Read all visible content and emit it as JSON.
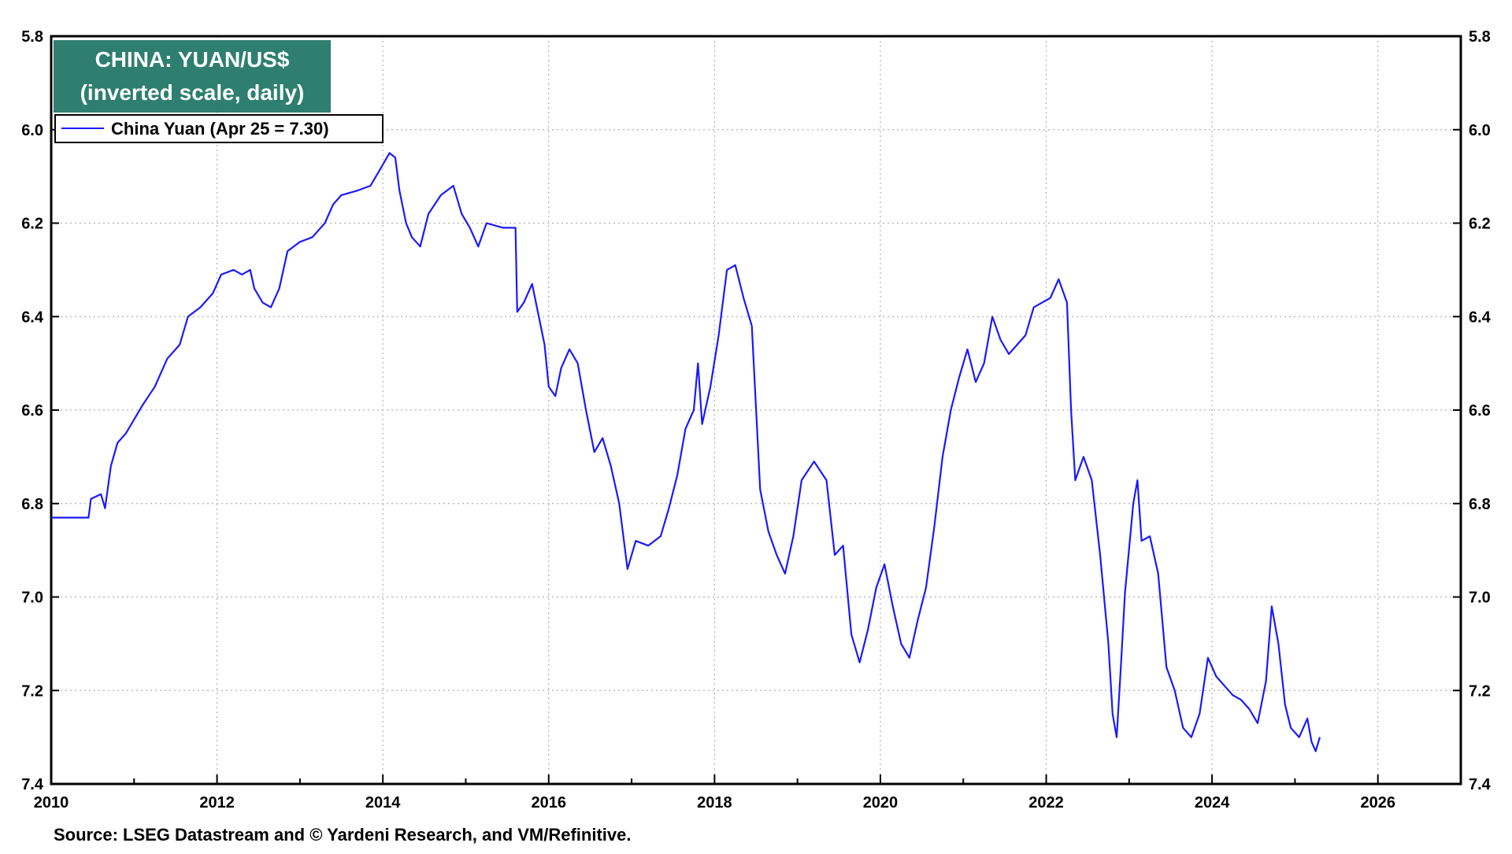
{
  "chart_data": {
    "type": "line",
    "title_line1": "CHINA: YUAN/US$",
    "title_line2": "(inverted scale, daily)",
    "source": "Source: LSEG Datastream and © Yardeni Research, and VM/Refinitive.",
    "y_inverted": true,
    "ylim": [
      5.8,
      7.4
    ],
    "xlim": [
      2010.0,
      2027.0
    ],
    "y_ticks": [
      "5.8",
      "6.0",
      "6.2",
      "6.4",
      "6.6",
      "6.8",
      "7.0",
      "7.2",
      "7.4"
    ],
    "x_ticks": [
      "2010",
      "2012",
      "2014",
      "2016",
      "2018",
      "2020",
      "2022",
      "2024",
      "2026"
    ],
    "grid": true,
    "legend_position": "top-left",
    "colors": {
      "line": "#1a1aff",
      "title_bg": "#2e7f6f",
      "grid": "#b0b0b0"
    },
    "series": [
      {
        "name": "China Yuan (Apr 25 = 7.30)",
        "points": [
          [
            2010.0,
            6.83
          ],
          [
            2010.2,
            6.83
          ],
          [
            2010.45,
            6.83
          ],
          [
            2010.48,
            6.79
          ],
          [
            2010.6,
            6.78
          ],
          [
            2010.65,
            6.81
          ],
          [
            2010.72,
            6.72
          ],
          [
            2010.8,
            6.67
          ],
          [
            2010.9,
            6.65
          ],
          [
            2011.0,
            6.62
          ],
          [
            2011.1,
            6.59
          ],
          [
            2011.25,
            6.55
          ],
          [
            2011.4,
            6.49
          ],
          [
            2011.55,
            6.46
          ],
          [
            2011.65,
            6.4
          ],
          [
            2011.8,
            6.38
          ],
          [
            2011.95,
            6.35
          ],
          [
            2012.05,
            6.31
          ],
          [
            2012.2,
            6.3
          ],
          [
            2012.3,
            6.31
          ],
          [
            2012.4,
            6.3
          ],
          [
            2012.45,
            6.34
          ],
          [
            2012.55,
            6.37
          ],
          [
            2012.65,
            6.38
          ],
          [
            2012.75,
            6.34
          ],
          [
            2012.85,
            6.26
          ],
          [
            2013.0,
            6.24
          ],
          [
            2013.15,
            6.23
          ],
          [
            2013.3,
            6.2
          ],
          [
            2013.4,
            6.16
          ],
          [
            2013.5,
            6.14
          ],
          [
            2013.7,
            6.13
          ],
          [
            2013.85,
            6.12
          ],
          [
            2013.95,
            6.09
          ],
          [
            2014.08,
            6.05
          ],
          [
            2014.15,
            6.06
          ],
          [
            2014.2,
            6.13
          ],
          [
            2014.28,
            6.2
          ],
          [
            2014.35,
            6.23
          ],
          [
            2014.45,
            6.25
          ],
          [
            2014.55,
            6.18
          ],
          [
            2014.7,
            6.14
          ],
          [
            2014.85,
            6.12
          ],
          [
            2014.95,
            6.18
          ],
          [
            2015.05,
            6.21
          ],
          [
            2015.15,
            6.25
          ],
          [
            2015.25,
            6.2
          ],
          [
            2015.45,
            6.21
          ],
          [
            2015.6,
            6.21
          ],
          [
            2015.62,
            6.39
          ],
          [
            2015.7,
            6.37
          ],
          [
            2015.8,
            6.33
          ],
          [
            2015.95,
            6.46
          ],
          [
            2016.0,
            6.55
          ],
          [
            2016.08,
            6.57
          ],
          [
            2016.15,
            6.51
          ],
          [
            2016.25,
            6.47
          ],
          [
            2016.35,
            6.5
          ],
          [
            2016.45,
            6.6
          ],
          [
            2016.55,
            6.69
          ],
          [
            2016.65,
            6.66
          ],
          [
            2016.75,
            6.72
          ],
          [
            2016.85,
            6.8
          ],
          [
            2016.95,
            6.94
          ],
          [
            2017.05,
            6.88
          ],
          [
            2017.2,
            6.89
          ],
          [
            2017.35,
            6.87
          ],
          [
            2017.45,
            6.81
          ],
          [
            2017.55,
            6.74
          ],
          [
            2017.65,
            6.64
          ],
          [
            2017.75,
            6.6
          ],
          [
            2017.8,
            6.5
          ],
          [
            2017.85,
            6.63
          ],
          [
            2017.95,
            6.55
          ],
          [
            2018.05,
            6.44
          ],
          [
            2018.15,
            6.3
          ],
          [
            2018.25,
            6.29
          ],
          [
            2018.35,
            6.36
          ],
          [
            2018.45,
            6.42
          ],
          [
            2018.55,
            6.77
          ],
          [
            2018.65,
            6.86
          ],
          [
            2018.75,
            6.91
          ],
          [
            2018.85,
            6.95
          ],
          [
            2018.95,
            6.87
          ],
          [
            2019.05,
            6.75
          ],
          [
            2019.2,
            6.71
          ],
          [
            2019.35,
            6.75
          ],
          [
            2019.45,
            6.91
          ],
          [
            2019.55,
            6.89
          ],
          [
            2019.65,
            7.08
          ],
          [
            2019.75,
            7.14
          ],
          [
            2019.85,
            7.07
          ],
          [
            2019.95,
            6.98
          ],
          [
            2020.05,
            6.93
          ],
          [
            2020.15,
            7.02
          ],
          [
            2020.25,
            7.1
          ],
          [
            2020.35,
            7.13
          ],
          [
            2020.45,
            7.05
          ],
          [
            2020.55,
            6.98
          ],
          [
            2020.65,
            6.85
          ],
          [
            2020.75,
            6.7
          ],
          [
            2020.85,
            6.6
          ],
          [
            2020.95,
            6.53
          ],
          [
            2021.05,
            6.47
          ],
          [
            2021.15,
            6.54
          ],
          [
            2021.25,
            6.5
          ],
          [
            2021.35,
            6.4
          ],
          [
            2021.45,
            6.45
          ],
          [
            2021.55,
            6.48
          ],
          [
            2021.65,
            6.46
          ],
          [
            2021.75,
            6.44
          ],
          [
            2021.85,
            6.38
          ],
          [
            2021.95,
            6.37
          ],
          [
            2022.05,
            6.36
          ],
          [
            2022.15,
            6.32
          ],
          [
            2022.25,
            6.37
          ],
          [
            2022.3,
            6.6
          ],
          [
            2022.35,
            6.75
          ],
          [
            2022.45,
            6.7
          ],
          [
            2022.55,
            6.75
          ],
          [
            2022.65,
            6.91
          ],
          [
            2022.75,
            7.1
          ],
          [
            2022.8,
            7.25
          ],
          [
            2022.85,
            7.3
          ],
          [
            2022.9,
            7.15
          ],
          [
            2022.95,
            6.99
          ],
          [
            2023.05,
            6.8
          ],
          [
            2023.1,
            6.75
          ],
          [
            2023.15,
            6.88
          ],
          [
            2023.25,
            6.87
          ],
          [
            2023.35,
            6.95
          ],
          [
            2023.45,
            7.15
          ],
          [
            2023.55,
            7.2
          ],
          [
            2023.65,
            7.28
          ],
          [
            2023.75,
            7.3
          ],
          [
            2023.85,
            7.25
          ],
          [
            2023.95,
            7.13
          ],
          [
            2024.05,
            7.17
          ],
          [
            2024.15,
            7.19
          ],
          [
            2024.25,
            7.21
          ],
          [
            2024.35,
            7.22
          ],
          [
            2024.45,
            7.24
          ],
          [
            2024.55,
            7.27
          ],
          [
            2024.65,
            7.18
          ],
          [
            2024.72,
            7.02
          ],
          [
            2024.8,
            7.1
          ],
          [
            2024.88,
            7.23
          ],
          [
            2024.95,
            7.28
          ],
          [
            2025.05,
            7.3
          ],
          [
            2025.15,
            7.26
          ],
          [
            2025.2,
            7.31
          ],
          [
            2025.25,
            7.33
          ],
          [
            2025.3,
            7.3
          ]
        ]
      }
    ]
  }
}
